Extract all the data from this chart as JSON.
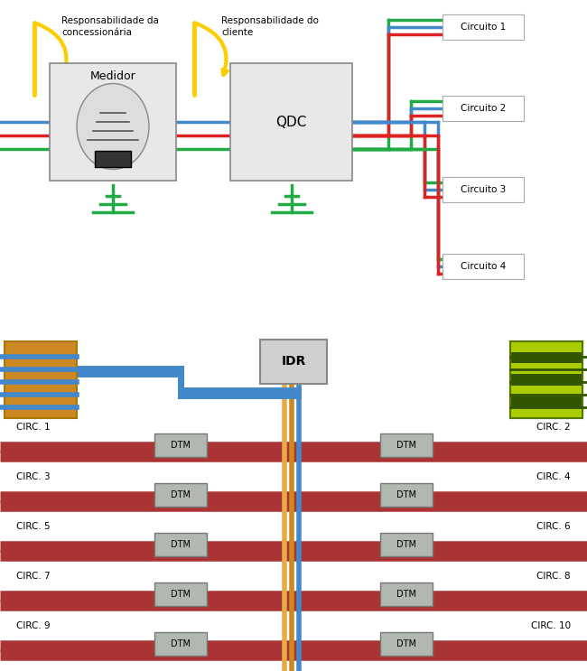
{
  "fig_width": 6.5,
  "fig_height": 7.43,
  "dpi": 100,
  "top_bg": "#ffffff",
  "bottom_bg": "#f2c8d0",
  "top_label1": "Responsabilidade da\nconcessionária",
  "top_label2": "Responsabilidade do\ncliente",
  "medidor_label": "Medidor",
  "qdc_label": "QDC",
  "idr_label": "IDR",
  "circuits_top": [
    "Circuito 1",
    "Circuito 2",
    "Circuito 3",
    "Circuito 4"
  ],
  "circuits_bottom_left": [
    "CIRC. 1",
    "CIRC. 3",
    "CIRC. 5",
    "CIRC. 7",
    "CIRC. 9"
  ],
  "circuits_bottom_right": [
    "CIRC. 2",
    "CIRC. 4",
    "CIRC. 6",
    "CIRC. 8",
    "CIRC. 10"
  ],
  "wire_blue": "#4488CC",
  "wire_red": "#DD2222",
  "wire_green": "#22AA44",
  "wire_yellow": "#FFCC00",
  "dtm_color": "#b0b8b0",
  "dtm_label": "DTM",
  "bus_orange": "#CC8822",
  "bus_orange2": "#E8AA44",
  "bus_blue": "#4488CC",
  "rail_color": "#AA3333",
  "rail_dark": "#882222"
}
